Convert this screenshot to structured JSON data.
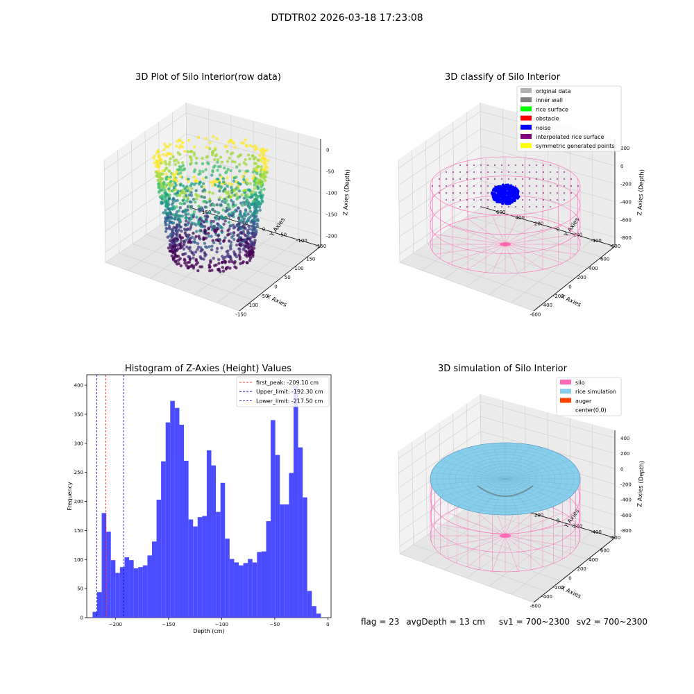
{
  "figure_title": "DTDTR02 2026-03-18 17:23:08",
  "footer": {
    "flag": "flag = 23",
    "avg_depth": "avgDepth = 13 cm",
    "sv1": "sv1 = 700~2300",
    "sv2": "sv2 = 700~2300"
  },
  "chart_data": [
    {
      "type": "scatter",
      "title": "3D Plot of Silo Interior(row data)",
      "xlabel": "X Axies",
      "ylabel": "Y Axies",
      "zlabel": "Z Axies (Depth)",
      "xticks": [
        "-150",
        "-100",
        "-50",
        "0",
        "50",
        "100",
        "150"
      ],
      "yticks": [
        "-150",
        "-100",
        "-50",
        "0",
        "50",
        "100",
        "150"
      ],
      "zticks": [
        "0",
        "-50",
        "-100",
        "-150",
        "-200"
      ],
      "colormap": "viridis"
    },
    {
      "type": "scatter",
      "title": "3D classify of Silo Interior",
      "xlabel": "X Axies",
      "ylabel": "Y Axies",
      "zlabel": "Z Axies (Depth)",
      "xticks": [
        "-600",
        "-400",
        "-200",
        "0",
        "200",
        "400",
        "600"
      ],
      "yticks": [
        "-600",
        "-400",
        "-200",
        "0",
        "200",
        "400",
        "600"
      ],
      "zticks": [
        "200",
        "0",
        "-200",
        "-400",
        "-600",
        "-800"
      ],
      "legend": [
        {
          "label": "original data",
          "color": "#b0b0b0"
        },
        {
          "label": "inner wall",
          "color": "#808080"
        },
        {
          "label": "rice surface",
          "color": "#00ff00"
        },
        {
          "label": "obstacle",
          "color": "#ff0000"
        },
        {
          "label": "noise",
          "color": "#0000ff"
        },
        {
          "label": "interpolated rice surface",
          "color": "#800080"
        },
        {
          "label": "symmetric generated points",
          "color": "#ffff00"
        }
      ]
    },
    {
      "type": "bar",
      "title": "Histogram of Z-Axies (Height) Values",
      "xlabel": "Depth (cm)",
      "ylabel": "Frequency",
      "xlim": [
        -227,
        3
      ],
      "ylim": [
        0,
        418
      ],
      "xticks": [
        -200,
        -150,
        -100,
        -50,
        0
      ],
      "yticks": [
        0,
        50,
        100,
        150,
        200,
        250,
        300,
        350,
        400
      ],
      "bin_width": 4.3,
      "bin_start": -221.5,
      "values": [
        10,
        44,
        180,
        148,
        99,
        77,
        87,
        104,
        99,
        85,
        87,
        90,
        107,
        131,
        203,
        269,
        336,
        373,
        361,
        332,
        270,
        169,
        157,
        173,
        175,
        288,
        262,
        182,
        232,
        136,
        101,
        95,
        90,
        94,
        101,
        95,
        113,
        114,
        166,
        340,
        280,
        195,
        195,
        249,
        399,
        293,
        207,
        46,
        20,
        7
      ],
      "bar_color": "#4b4bff",
      "lines": [
        {
          "label": "first_peak: -209.10 cm",
          "x": -209.1,
          "color": "#ff0000"
        },
        {
          "label": "Upper_limit: -192.30 cm",
          "x": -192.3,
          "color": "#0000cc"
        },
        {
          "label": "Lower_limit: -217.50 cm",
          "x": -217.5,
          "color": "#0000cc"
        }
      ]
    },
    {
      "type": "scatter",
      "title": "3D simulation of Silo Interior",
      "xlabel": "X Axies",
      "ylabel": "Y Axies",
      "zlabel": "Z Axies (Depth)",
      "xticks": [
        "-600",
        "-400",
        "-200",
        "0",
        "200",
        "400",
        "600"
      ],
      "yticks": [
        "-600",
        "-400",
        "-200",
        "0",
        "200",
        "400",
        "600"
      ],
      "zticks": [
        "400",
        "200",
        "0",
        "-200",
        "-400",
        "-600",
        "-800"
      ],
      "legend": [
        {
          "label": "silo",
          "color": "#ff69b4"
        },
        {
          "label": "rice simulation",
          "color": "#87ceeb"
        },
        {
          "label": "auger",
          "color": "#ff4500"
        },
        {
          "label": "center(0,0)",
          "color": ""
        }
      ]
    }
  ]
}
